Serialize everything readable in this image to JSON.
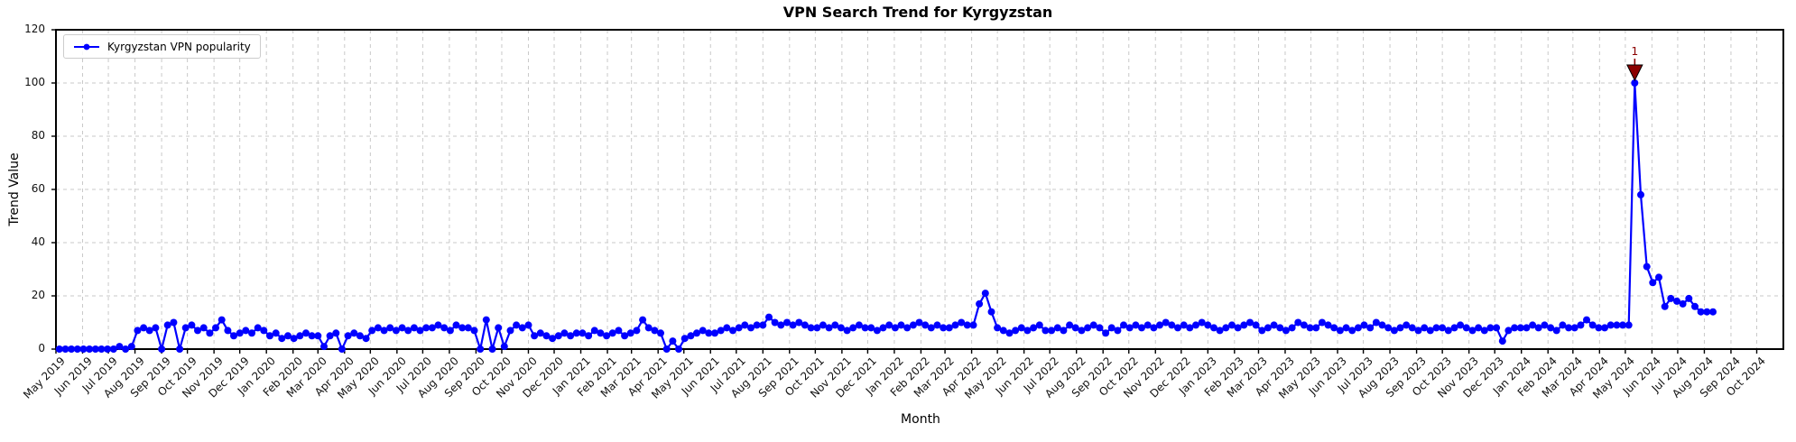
{
  "chart_data": {
    "type": "line",
    "title": "VPN Search Trend for Kyrgyzstan",
    "xlabel": "Month",
    "ylabel": "Trend Value",
    "legend": [
      "Kyrgyzstan VPN popularity"
    ],
    "legend_position": "upper left",
    "grid": true,
    "line_color": "#0000ff",
    "marker": "o",
    "ylim": [
      0,
      120
    ],
    "y_ticks": [
      0,
      20,
      40,
      60,
      80,
      100,
      120
    ],
    "x_axis_min": "2019-05-01",
    "x_axis_max": "2024-11-01",
    "x_tick_labels": [
      "May 2019",
      "Jun 2019",
      "Jul 2019",
      "Aug 2019",
      "Sep 2019",
      "Oct 2019",
      "Nov 2019",
      "Dec 2019",
      "Jan 2020",
      "Feb 2020",
      "Mar 2020",
      "Apr 2020",
      "May 2020",
      "Jun 2020",
      "Jul 2020",
      "Aug 2020",
      "Sep 2020",
      "Oct 2020",
      "Nov 2020",
      "Dec 2020",
      "Jan 2021",
      "Feb 2021",
      "Mar 2021",
      "Apr 2021",
      "May 2021",
      "Jun 2021",
      "Jul 2021",
      "Aug 2021",
      "Sep 2021",
      "Oct 2021",
      "Nov 2021",
      "Dec 2021",
      "Jan 2022",
      "Feb 2022",
      "Mar 2022",
      "Apr 2022",
      "May 2022",
      "Jun 2022",
      "Jul 2022",
      "Aug 2022",
      "Sep 2022",
      "Oct 2022",
      "Nov 2022",
      "Dec 2022",
      "Jan 2023",
      "Feb 2023",
      "Mar 2023",
      "Apr 2023",
      "May 2023",
      "Jun 2023",
      "Jul 2023",
      "Aug 2023",
      "Sep 2023",
      "Oct 2023",
      "Nov 2023",
      "Dec 2023",
      "Jan 2024",
      "Feb 2024",
      "Mar 2024",
      "Apr 2024",
      "May 2024",
      "Jun 2024",
      "Jul 2024",
      "Aug 2024",
      "Sep 2024",
      "Oct 2024"
    ],
    "x_unit": "weekly samples",
    "x_start": "2019-05-05",
    "x_step_days": 7,
    "values": [
      0,
      0,
      0,
      0,
      0,
      0,
      0,
      0,
      0,
      0,
      1,
      0,
      1,
      7,
      8,
      7,
      8,
      0,
      9,
      10,
      0,
      8,
      9,
      7,
      8,
      6,
      8,
      11,
      7,
      5,
      6,
      7,
      6,
      8,
      7,
      5,
      6,
      4,
      5,
      4,
      5,
      6,
      5,
      5,
      1,
      5,
      6,
      0,
      5,
      6,
      5,
      4,
      7,
      8,
      7,
      8,
      7,
      8,
      7,
      8,
      7,
      8,
      8,
      9,
      8,
      7,
      9,
      8,
      8,
      7,
      0,
      11,
      0,
      8,
      1,
      7,
      9,
      8,
      9,
      5,
      6,
      5,
      4,
      5,
      6,
      5,
      6,
      6,
      5,
      7,
      6,
      5,
      6,
      7,
      5,
      6,
      7,
      11,
      8,
      7,
      6,
      0,
      3,
      0,
      4,
      5,
      6,
      7,
      6,
      6,
      7,
      8,
      7,
      8,
      9,
      8,
      9,
      9,
      12,
      10,
      9,
      10,
      9,
      10,
      9,
      8,
      8,
      9,
      8,
      9,
      8,
      7,
      8,
      9,
      8,
      8,
      7,
      8,
      9,
      8,
      9,
      8,
      9,
      10,
      9,
      8,
      9,
      8,
      8,
      9,
      10,
      9,
      9,
      17,
      21,
      14,
      8,
      7,
      6,
      7,
      8,
      7,
      8,
      9,
      7,
      7,
      8,
      7,
      9,
      8,
      7,
      8,
      9,
      8,
      6,
      8,
      7,
      9,
      8,
      9,
      8,
      9,
      8,
      9,
      10,
      9,
      8,
      9,
      8,
      9,
      10,
      9,
      8,
      7,
      8,
      9,
      8,
      9,
      10,
      9,
      7,
      8,
      9,
      8,
      7,
      8,
      10,
      9,
      8,
      8,
      10,
      9,
      8,
      7,
      8,
      7,
      8,
      9,
      8,
      10,
      9,
      8,
      7,
      8,
      9,
      8,
      7,
      8,
      7,
      8,
      8,
      7,
      8,
      9,
      8,
      7,
      8,
      7,
      8,
      8,
      3,
      7,
      8,
      8,
      8,
      9,
      8,
      9,
      8,
      7,
      9,
      8,
      8,
      9,
      11,
      9,
      8,
      8,
      9,
      9,
      9,
      9,
      100,
      58,
      31,
      25,
      27,
      16,
      19,
      18,
      17,
      19,
      16,
      14,
      14,
      14
    ],
    "annotation": {
      "label": "1",
      "date": "2024-05-12",
      "value": 100,
      "marker": "triangle-down",
      "color": "#8b0000"
    }
  }
}
